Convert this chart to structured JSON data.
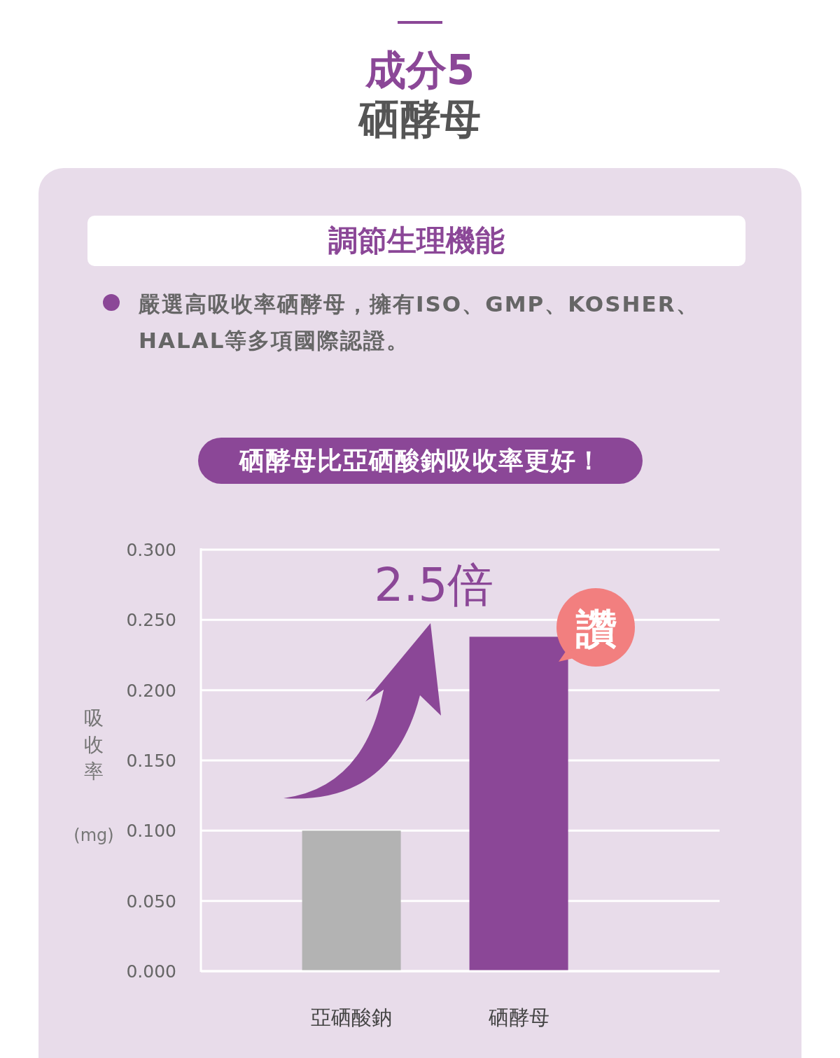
{
  "chart_data": {
    "type": "bar",
    "title": "成分5",
    "subtitle": "硒酵母",
    "annotations": [
      "調節生理機能",
      "嚴選高吸收率硒酵母，擁有ISO、GMP、KOSHER、HALAL等多項國際認證。",
      "硒酵母比亞硒酸鈉吸收率更好！",
      "2.5倍",
      "讚"
    ],
    "ylabel": "吸收率(mg)",
    "categories": [
      "亞硒酸鈉",
      "硒酵母"
    ],
    "values": [
      0.1,
      0.238
    ],
    "colors": [
      "#b3b3b3",
      "#8b4797"
    ],
    "ylim": [
      0,
      0.3
    ],
    "yticks": [
      {
        "value": 0,
        "label": "0.000"
      },
      {
        "value": 0.05,
        "label": "0.050"
      },
      {
        "value": 0.1,
        "label": "0.100"
      },
      {
        "value": 0.15,
        "label": "0.150"
      },
      {
        "value": 0.2,
        "label": "0.200"
      },
      {
        "value": 0.25,
        "label": "0.250"
      },
      {
        "value": 0.3,
        "label": "0.300"
      }
    ],
    "grid": "y"
  }
}
